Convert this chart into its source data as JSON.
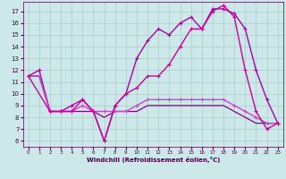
{
  "xlabel": "Windchill (Refroidissement éolien,°C)",
  "xlim": [
    -0.5,
    23.5
  ],
  "ylim": [
    5.5,
    17.8
  ],
  "yticks": [
    6,
    7,
    8,
    9,
    10,
    11,
    12,
    13,
    14,
    15,
    16,
    17
  ],
  "xticks": [
    0,
    1,
    2,
    3,
    4,
    5,
    6,
    7,
    8,
    9,
    10,
    11,
    12,
    13,
    14,
    15,
    16,
    17,
    18,
    19,
    20,
    21,
    22,
    23
  ],
  "bg_color": "#cce8e8",
  "grid_color": "#aacccc",
  "series": [
    {
      "x": [
        0,
        1,
        2,
        3,
        4,
        5,
        6,
        7,
        8,
        9,
        10,
        11,
        12,
        13,
        14,
        15,
        16,
        17,
        18,
        19,
        20,
        21,
        22,
        23
      ],
      "y": [
        11.5,
        12.0,
        8.5,
        8.5,
        9.0,
        9.5,
        8.5,
        6.0,
        9.0,
        10.0,
        13.0,
        14.5,
        15.5,
        15.0,
        16.0,
        16.5,
        15.5,
        17.2,
        17.2,
        16.8,
        15.5,
        12.0,
        9.5,
        7.5
      ],
      "color": "#aa00aa",
      "marker": "+",
      "lw": 1.0,
      "ms": 3
    },
    {
      "x": [
        0,
        1,
        2,
        3,
        4,
        5,
        6,
        7,
        8,
        9,
        10,
        11,
        12,
        13,
        14,
        15,
        16,
        17,
        18,
        19,
        20,
        21,
        22,
        23
      ],
      "y": [
        11.5,
        11.5,
        8.5,
        8.5,
        8.5,
        9.0,
        8.5,
        8.5,
        8.5,
        8.5,
        9.0,
        9.5,
        9.5,
        9.5,
        9.5,
        9.5,
        9.5,
        9.5,
        9.5,
        9.0,
        8.5,
        8.0,
        7.5,
        7.5
      ],
      "color": "#cc44cc",
      "marker": "+",
      "lw": 1.0,
      "ms": 3
    },
    {
      "x": [
        0,
        1,
        2,
        3,
        4,
        5,
        6,
        7,
        8,
        9,
        10,
        11,
        12,
        13,
        14,
        15,
        16,
        17,
        18,
        19,
        20,
        21,
        22,
        23
      ],
      "y": [
        11.5,
        11.5,
        8.5,
        8.5,
        8.5,
        8.5,
        8.5,
        8.0,
        8.5,
        8.5,
        8.5,
        9.0,
        9.0,
        9.0,
        9.0,
        9.0,
        9.0,
        9.0,
        9.0,
        8.5,
        8.0,
        7.5,
        7.5,
        7.5
      ],
      "color": "#880088",
      "marker": null,
      "lw": 0.9,
      "ms": 0
    },
    {
      "x": [
        0,
        2,
        3,
        4,
        5,
        6,
        7,
        8,
        9,
        10,
        11,
        12,
        13,
        14,
        15,
        16,
        17,
        18,
        19,
        20,
        21,
        22,
        23
      ],
      "y": [
        11.5,
        8.5,
        8.5,
        8.5,
        9.5,
        8.5,
        6.0,
        9.0,
        10.0,
        10.5,
        11.5,
        11.5,
        12.5,
        14.0,
        15.5,
        15.5,
        17.0,
        17.5,
        16.5,
        12.0,
        8.5,
        7.0,
        7.5
      ],
      "color": "#cc0099",
      "marker": "+",
      "lw": 1.0,
      "ms": 3
    }
  ]
}
